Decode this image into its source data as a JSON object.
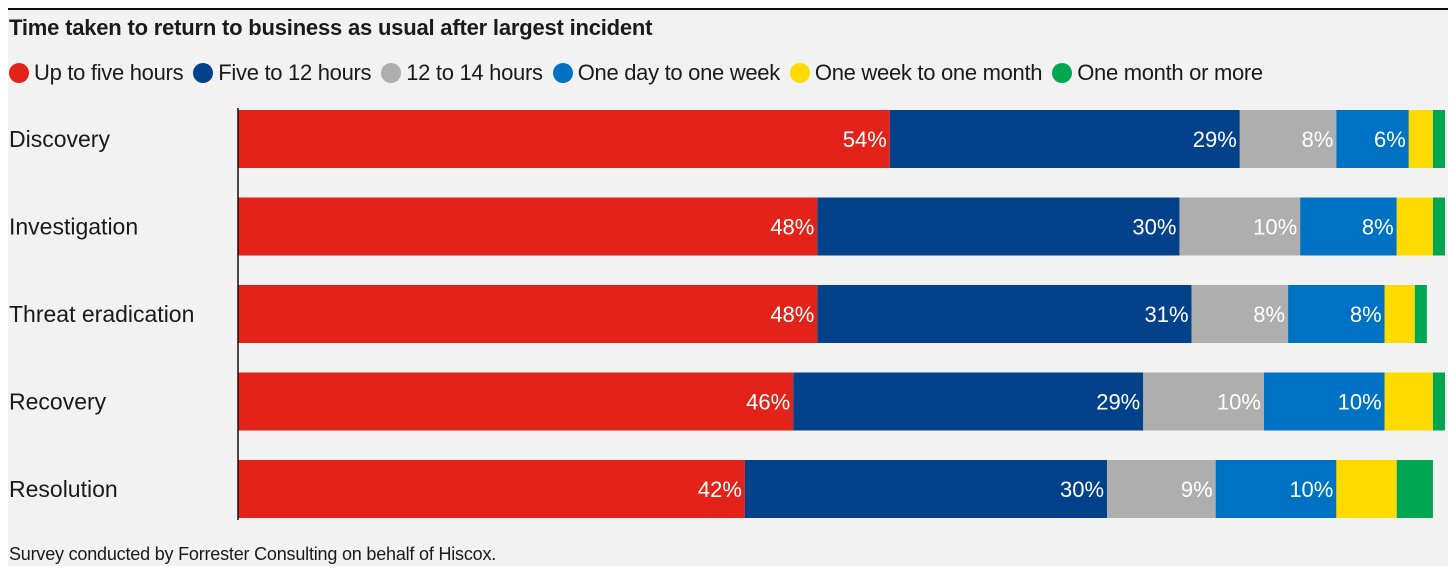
{
  "chart_data": {
    "type": "bar",
    "orientation": "horizontal",
    "stacked": true,
    "title": "Time taken to return to business as usual after largest incident",
    "categories": [
      "Discovery",
      "Investigation",
      "Threat eradication",
      "Recovery",
      "Resolution"
    ],
    "series": [
      {
        "name": "Up to five hours",
        "color": "#e3231a",
        "values": [
          54,
          48,
          48,
          46,
          42
        ],
        "labels": [
          "54%",
          "48%",
          "48%",
          "46%",
          "42%"
        ]
      },
      {
        "name": "Five to 12 hours",
        "color": "#03428b",
        "values": [
          29,
          30,
          31,
          29,
          30
        ],
        "labels": [
          "29%",
          "30%",
          "31%",
          "29%",
          "30%"
        ]
      },
      {
        "name": "12 to 14 hours",
        "color": "#aeaeae",
        "values": [
          8,
          10,
          8,
          10,
          9
        ],
        "labels": [
          "8%",
          "10%",
          "8%",
          "10%",
          "9%"
        ]
      },
      {
        "name": "One day to one week",
        "color": "#0072c3",
        "values": [
          6,
          8,
          8,
          10,
          10
        ],
        "labels": [
          "6%",
          "8%",
          "8%",
          "10%",
          "10%"
        ]
      },
      {
        "name": "One week to one month",
        "color": "#fddb00",
        "values": [
          2,
          3,
          2.5,
          4,
          5
        ],
        "labels": [
          "",
          "",
          "",
          "",
          ""
        ]
      },
      {
        "name": "One month or more",
        "color": "#00a651",
        "values": [
          1,
          1,
          1,
          1,
          3
        ],
        "labels": [
          "",
          "",
          "",
          "",
          ""
        ]
      }
    ],
    "xlim": [
      0,
      100
    ],
    "legend_position": "top",
    "grid": false
  },
  "footnote": "Survey conducted by Forrester Consulting on behalf of Hiscox."
}
